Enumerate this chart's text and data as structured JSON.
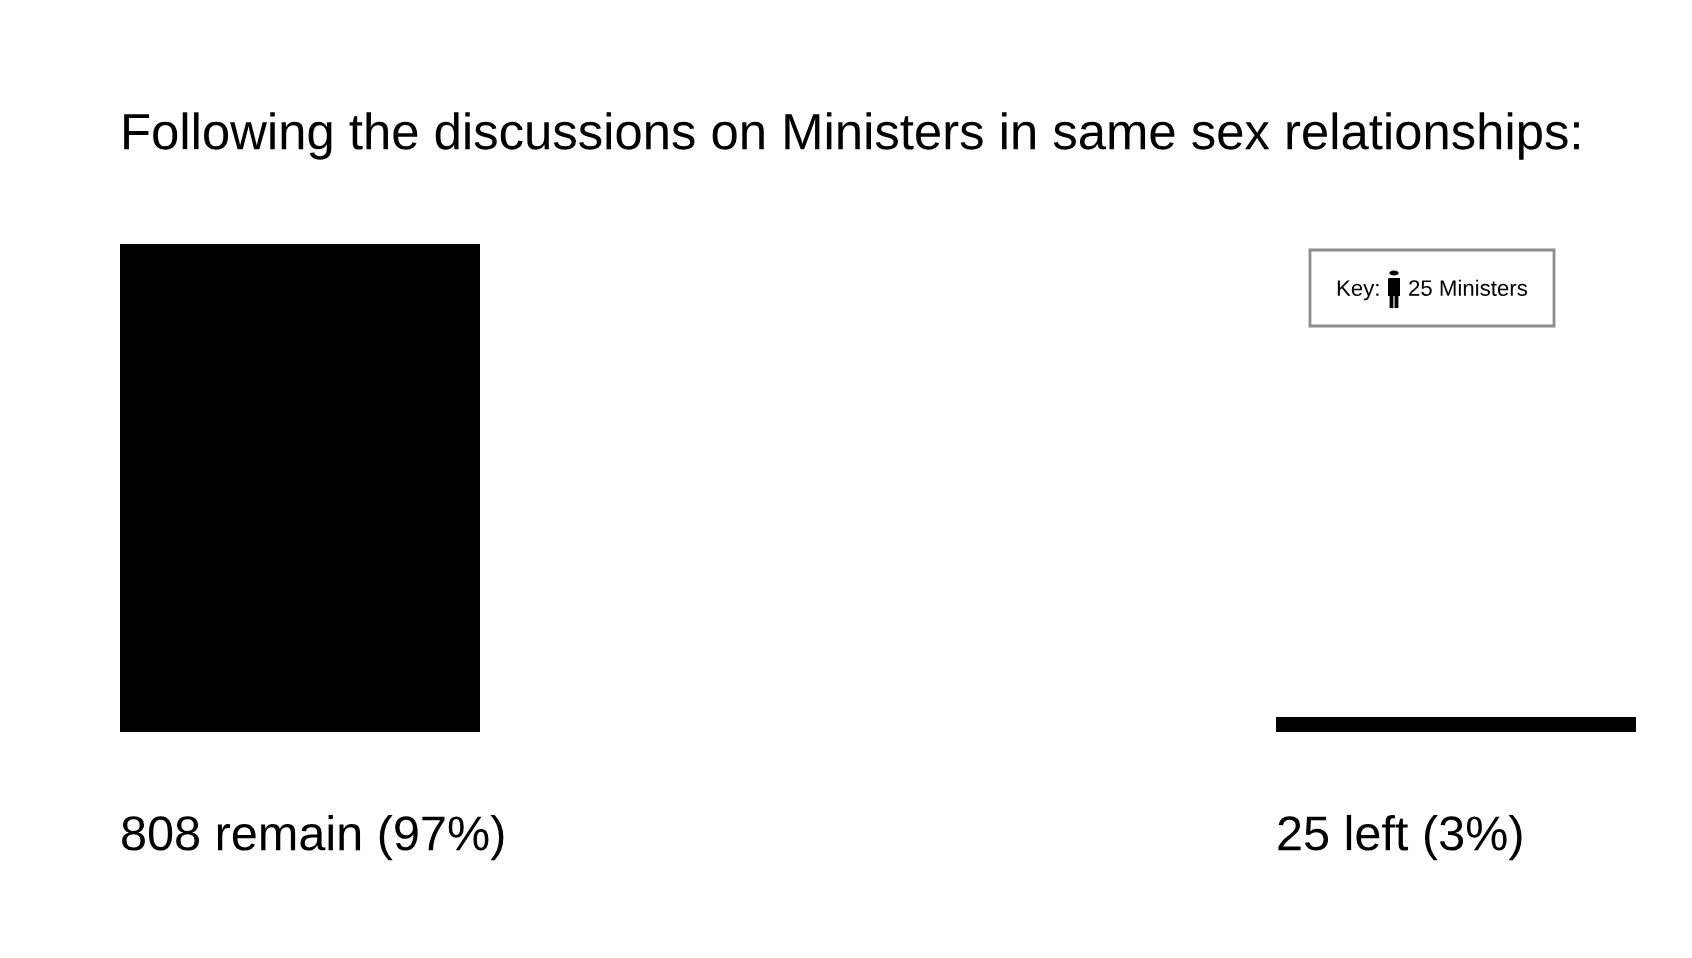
{
  "chart_data": {
    "type": "bar",
    "title": "Following the discussions on Ministers in same sex relationships:",
    "categories": [
      null,
      null
    ],
    "values": [
      808,
      25
    ],
    "color": "#000000",
    "value_labels": [
      "808 remain (97%)",
      "25 left (3%)"
    ],
    "annotations": [
      "Key:",
      "25 Ministers"
    ]
  }
}
